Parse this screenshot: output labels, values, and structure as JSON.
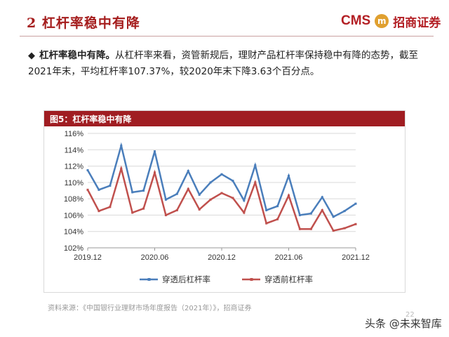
{
  "header": {
    "title": "2 杠杆率稳中有降",
    "logo_en": "CMS",
    "logo_cn": "招商证券",
    "logo_mark": "m"
  },
  "bullet": {
    "lead": "杠杆率稳中有降。",
    "text": "从杠杆率来看，资管新规后，理财产品杠杆率保持稳中有降的态势，截至2021年末，平均杠杆率107.37%，较2020年末下降3.63个百分点。"
  },
  "figure": {
    "title": "图5：杠杆率稳中有降"
  },
  "source": "资料来源：《中国银行业理财市场年度报告（2021年）》，招商证券",
  "page_number": "22",
  "watermark": "头条 @未来智库",
  "chart_data": {
    "type": "line",
    "x_tick_labels": [
      "2019.12",
      "2020.06",
      "2020.12",
      "2021.06",
      "2021.12"
    ],
    "x_tick_indices": [
      0,
      6,
      12,
      18,
      24
    ],
    "ylim": [
      102,
      116
    ],
    "y_ticks": [
      102,
      104,
      106,
      108,
      110,
      112,
      114,
      116
    ],
    "y_tick_format": "{v}%",
    "grid": true,
    "legend": "bottom",
    "series": [
      {
        "name": "穿透后杠杆率",
        "color": "#4a7ebb",
        "values": [
          111.5,
          109.1,
          109.6,
          114.5,
          108.8,
          109.0,
          113.8,
          107.9,
          108.6,
          111.4,
          108.5,
          110.0,
          111.0,
          110.2,
          107.8,
          112.1,
          106.6,
          107.1,
          110.8,
          106.0,
          106.2,
          108.2,
          105.8,
          106.5,
          107.4
        ]
      },
      {
        "name": "穿透前杠杆率",
        "color": "#c0504d",
        "values": [
          109.1,
          106.5,
          107.0,
          111.7,
          106.3,
          106.8,
          111.2,
          106.0,
          106.6,
          109.2,
          106.7,
          107.9,
          108.7,
          108.1,
          106.3,
          110.0,
          105.0,
          105.5,
          108.4,
          104.3,
          104.3,
          106.6,
          104.1,
          104.4,
          104.9
        ]
      }
    ]
  }
}
